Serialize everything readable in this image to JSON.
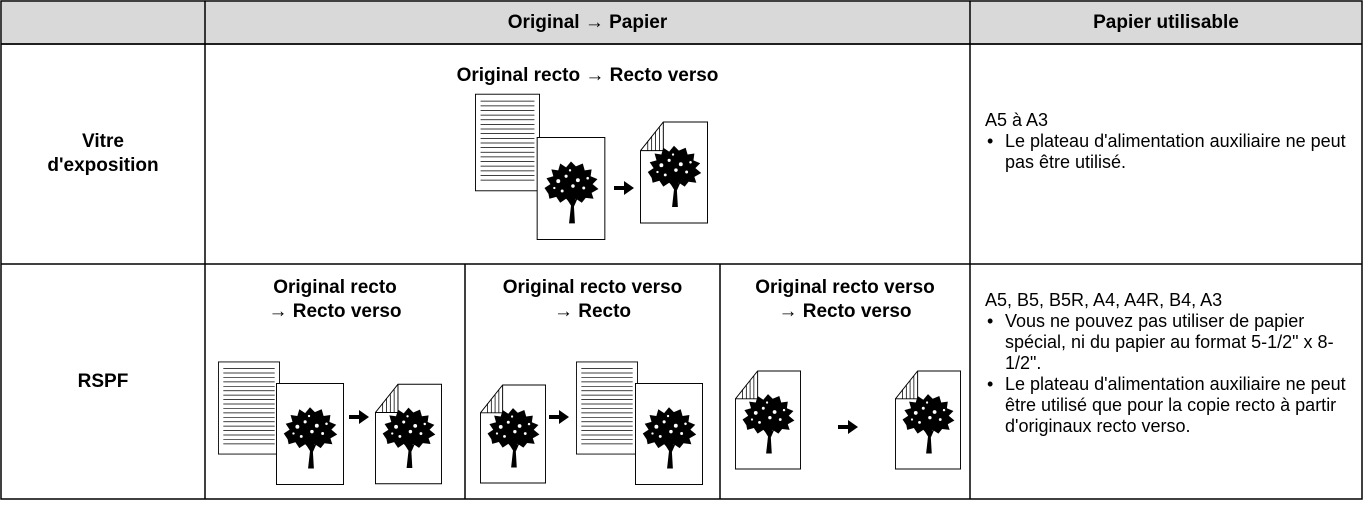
{
  "header": {
    "cells": [
      "Original → Papier",
      "Papier utilisable"
    ]
  },
  "rows": [
    {
      "label": "Vitre\nd'exposition",
      "modes": [
        "Original recto → Recto verso"
      ],
      "paper": {
        "sizes": "A5 à A3",
        "notes": [
          "Le plateau d'alimentation auxiliaire ne peut pas être utilisé."
        ]
      }
    },
    {
      "label": "RSPF",
      "modes": [
        "Original recto\n→ Recto verso",
        "Original recto verso\n→ Recto",
        "Original recto verso\n→ Recto verso"
      ],
      "paper": {
        "sizes": "A5, B5, B5R, A4, A4R, B4, A3",
        "notes": [
          "Vous ne pouvez pas utiliser de papier spécial, ni du papier au format 5-1/2\" x 8-1/2\".",
          "Le plateau d'alimentation auxiliaire ne peut être utilisé que pour la copie recto à partir d'originaux recto verso."
        ]
      }
    }
  ]
}
